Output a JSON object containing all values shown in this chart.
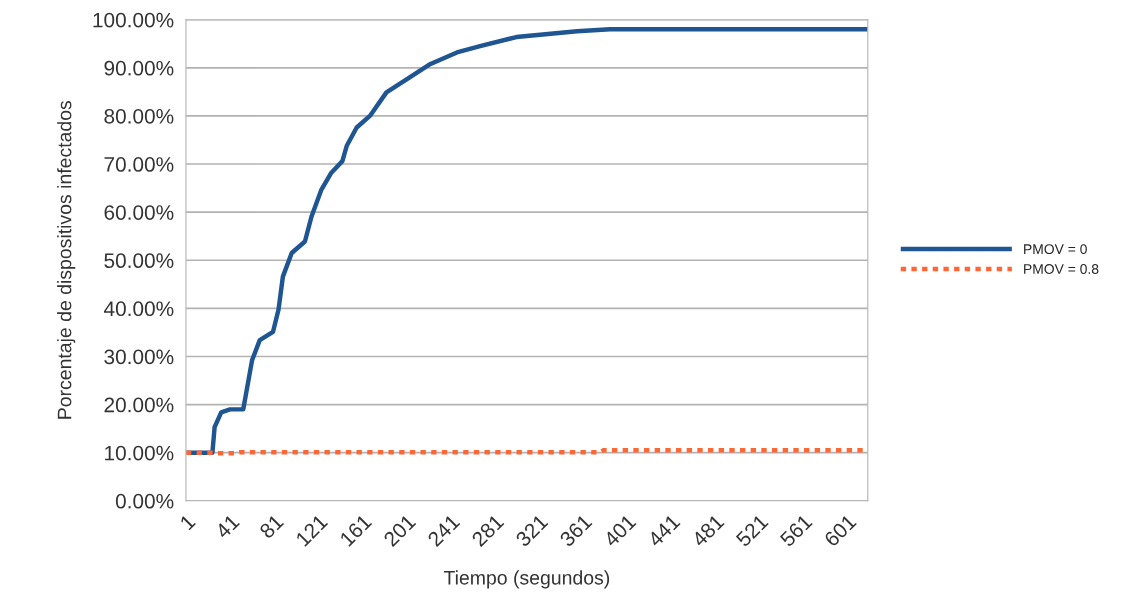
{
  "chart_data": {
    "type": "line",
    "xlabel": "Tiempo (segundos)",
    "ylabel": "Porcentaje de dispositivos infectados",
    "xlim": [
      1,
      620
    ],
    "xticks": [
      1,
      41,
      81,
      121,
      161,
      201,
      241,
      281,
      321,
      361,
      401,
      441,
      481,
      521,
      561,
      601
    ],
    "ylim": [
      0,
      100
    ],
    "yticks": [
      {
        "value": 0,
        "label": "0.00%"
      },
      {
        "value": 10,
        "label": "10.00%"
      },
      {
        "value": 20,
        "label": "20.00%"
      },
      {
        "value": 30,
        "label": "30.00%"
      },
      {
        "value": 40,
        "label": "40.00%"
      },
      {
        "value": 50,
        "label": "50.00%"
      },
      {
        "value": 60,
        "label": "60.00%"
      },
      {
        "value": 70,
        "label": "70.00%"
      },
      {
        "value": 80,
        "label": "80.00%"
      },
      {
        "value": 90,
        "label": "90.00%"
      },
      {
        "value": 100,
        "label": "100.00%"
      }
    ],
    "grid": "y",
    "legend": "right",
    "marker": "none",
    "series": [
      {
        "name": "PMOV = 0",
        "color": "#1f5591",
        "line_style": "solid",
        "x": [
          1,
          25,
          27,
          33,
          41,
          53,
          61,
          68,
          80,
          85,
          89,
          97,
          109,
          115,
          124,
          133,
          143,
          147,
          156,
          168,
          183,
          202,
          223,
          247,
          268,
          301,
          356,
          386,
          620
        ],
        "values": [
          10,
          10,
          15.3,
          18.4,
          19,
          19,
          29.2,
          33.4,
          35.1,
          39.7,
          46.6,
          51.5,
          53.9,
          59.1,
          64.7,
          68.2,
          70.6,
          73.8,
          77.6,
          80,
          84.9,
          87.7,
          90.8,
          93.2,
          94.5,
          96.4,
          97.6,
          98,
          98
        ]
      },
      {
        "name": "PMOV = 0.8",
        "color": "#ff6633",
        "line_style": "dotted",
        "x": [
          1,
          25,
          30,
          45,
          50,
          377,
          380,
          620
        ],
        "values": [
          10,
          10,
          9.9,
          9.9,
          10.1,
          10.1,
          10.5,
          10.5
        ]
      }
    ]
  }
}
